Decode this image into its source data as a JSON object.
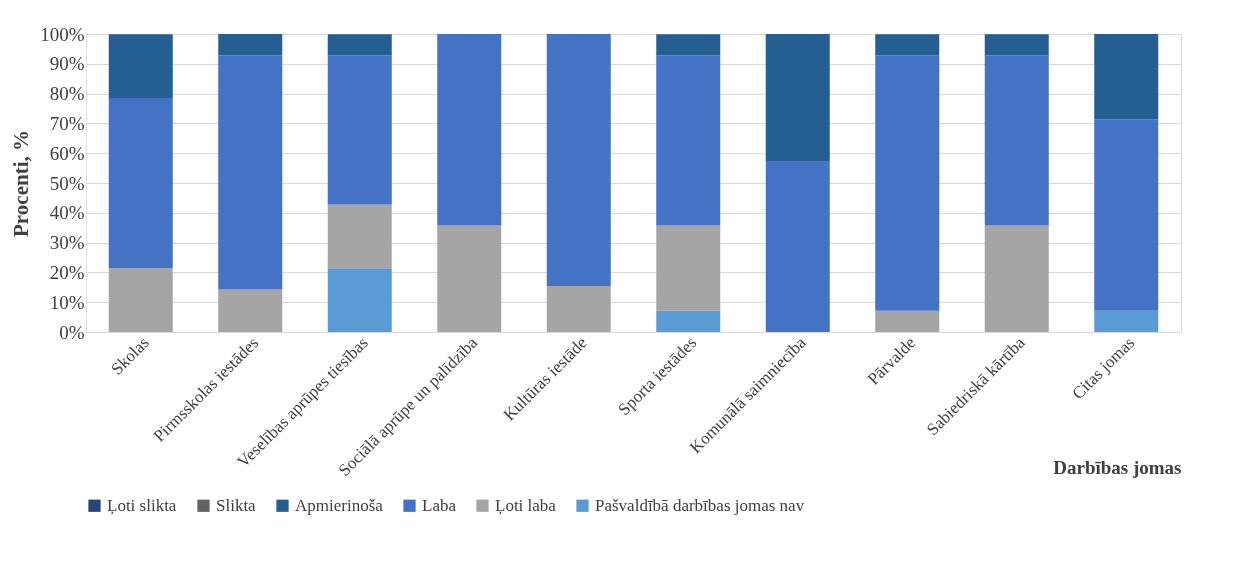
{
  "chart_data": {
    "type": "bar",
    "stacked": true,
    "xlabel": "Darbības jomas",
    "ylabel": "Procenti, %",
    "categories": [
      "Skolas",
      "Pirmsskolas iestādes",
      "Veselības aprūpes tiesības",
      "Sociālā aprūpe un palīdzība",
      "Kultūras iestāde",
      "Sporta iestādes",
      "Komunālā saimniecība",
      "Pārvalde",
      "Sabiedriskā kārtība",
      "Citas jomas"
    ],
    "series": [
      {
        "name": "Pašvaldībā darbības jomas nav",
        "color": "#5b9bd5",
        "values": [
          0,
          0,
          21.4,
          0,
          0,
          7.1,
          0,
          0,
          0,
          7.1
        ]
      },
      {
        "name": "Ļoti laba",
        "color": "#a5a5a5",
        "values": [
          21.4,
          14.3,
          21.4,
          35.7,
          15.4,
          28.6,
          0,
          7.1,
          35.7,
          0
        ]
      },
      {
        "name": "Laba",
        "color": "#4472c4",
        "values": [
          57.1,
          78.6,
          50,
          64.3,
          84.6,
          57.1,
          57.1,
          85.7,
          57.1,
          64.3
        ]
      },
      {
        "name": "Apmierinoša",
        "color": "#255e91",
        "values": [
          21.4,
          7.1,
          7.1,
          0,
          0,
          7.1,
          42.9,
          7.1,
          7.1,
          28.6
        ]
      },
      {
        "name": "Slikta",
        "color": "#636363",
        "values": [
          0,
          0,
          0,
          0,
          0,
          0,
          0,
          0,
          0,
          0
        ]
      },
      {
        "name": "Ļoti slikta",
        "color": "#264478",
        "values": [
          0,
          0,
          0,
          0,
          0,
          0,
          0,
          0,
          0,
          0
        ]
      }
    ],
    "ylim": [
      0,
      100
    ],
    "yticks": [
      {
        "value": 0,
        "label": "0%"
      },
      {
        "value": 10,
        "label": "10%"
      },
      {
        "value": 20,
        "label": "20%"
      },
      {
        "value": 30,
        "label": "30%"
      },
      {
        "value": 40,
        "label": "40%"
      },
      {
        "value": 50,
        "label": "50%"
      },
      {
        "value": 60,
        "label": "60%"
      },
      {
        "value": 70,
        "label": "70%"
      },
      {
        "value": 80,
        "label": "80%"
      },
      {
        "value": 90,
        "label": "90%"
      },
      {
        "value": 100,
        "label": "100%"
      }
    ],
    "grid": "y",
    "legend": "bottom"
  }
}
